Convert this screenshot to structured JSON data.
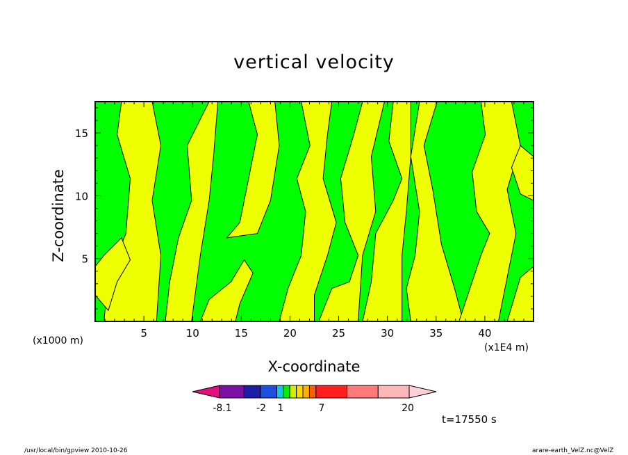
{
  "chart_data": {
    "type": "contour",
    "title": "vertical velocity",
    "xlabel": "X-coordinate",
    "ylabel": "Z-coordinate",
    "x_unit_left": "(x1000 m)",
    "x_unit_right": "(x1E4 m)",
    "xlim": [
      0,
      45
    ],
    "ylim": [
      0,
      17.5
    ],
    "x_ticks": [
      "5",
      "10",
      "15",
      "20",
      "25",
      "30",
      "35",
      "40"
    ],
    "y_ticks": [
      "5",
      "10",
      "15"
    ],
    "colorbar": {
      "labels": [
        "-8.1",
        "-2",
        "1",
        "7",
        "20"
      ],
      "colors": [
        "#e0107e",
        "#7b10a6",
        "#1d1da8",
        "#1f4fe0",
        "#10c8e0",
        "#00f000",
        "#cfef00",
        "#ffd800",
        "#ffb000",
        "#ff6000",
        "#ff1f1f",
        "#ff7b7b",
        "#ffb8b8",
        "#ffd0d8"
      ]
    },
    "fill_colors": {
      "upward": "#00ff00",
      "downward": "#eeff00"
    },
    "time_label": "t=17550 s"
  },
  "footer": {
    "left": "/usr/local/bin/gpview  2010-10-26",
    "right": "arare-earth_VelZ.nc@VelZ"
  }
}
